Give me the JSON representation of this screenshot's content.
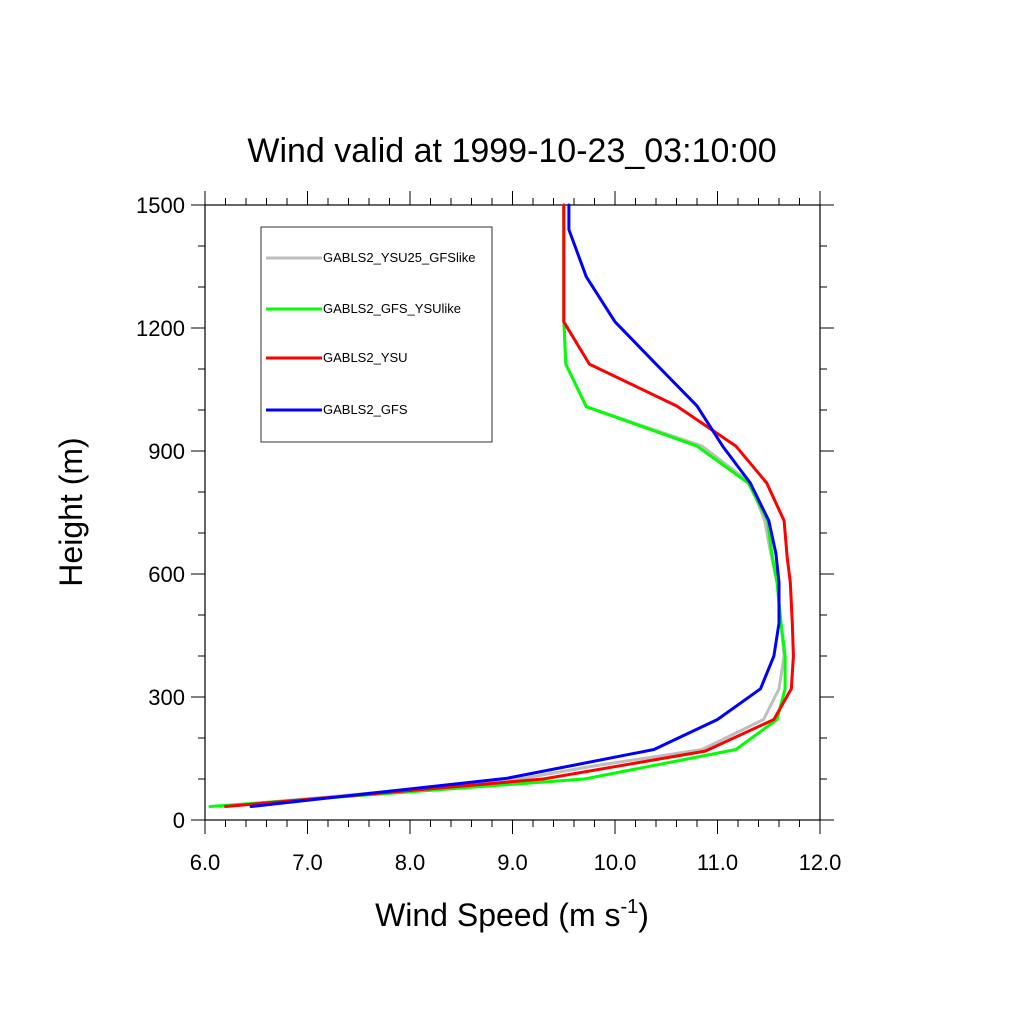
{
  "chart_data": {
    "type": "line",
    "title": "Wind valid at 1999-10-23_03:10:00",
    "xlabel": "Wind Speed (m s",
    "xlabel_sup": "-1",
    "xlabel_close": ")",
    "ylabel": "Height (m)",
    "xlim": [
      6.0,
      12.0
    ],
    "ylim": [
      0,
      1500
    ],
    "x_ticks": [
      "6.0",
      "7.0",
      "8.0",
      "9.0",
      "10.0",
      "11.0",
      "12.0"
    ],
    "y_ticks": [
      "0",
      "300",
      "600",
      "900",
      "1200",
      "1500"
    ],
    "legend_position": "top-left",
    "series": [
      {
        "name": "GABLS2_YSU25_GFSlike",
        "color": "#bebebe",
        "points": [
          [
            6.15,
            33
          ],
          [
            9.0,
            97
          ],
          [
            9.8,
            132
          ],
          [
            10.85,
            172
          ],
          [
            11.45,
            245
          ],
          [
            11.6,
            320
          ],
          [
            11.65,
            400
          ],
          [
            11.62,
            480
          ],
          [
            11.58,
            580
          ],
          [
            11.52,
            650
          ],
          [
            11.46,
            730
          ],
          [
            11.32,
            822
          ],
          [
            10.85,
            912
          ],
          [
            9.72,
            1008
          ],
          [
            9.52,
            1112
          ],
          [
            9.5,
            1220
          ],
          [
            9.5,
            1500
          ]
        ]
      },
      {
        "name": "GABLS2_GFS_YSUlike",
        "color": "#00ff00",
        "points": [
          [
            6.05,
            33
          ],
          [
            9.7,
            100
          ],
          [
            11.18,
            172
          ],
          [
            11.58,
            245
          ],
          [
            11.66,
            320
          ],
          [
            11.66,
            400
          ],
          [
            11.62,
            480
          ],
          [
            11.58,
            580
          ],
          [
            11.53,
            650
          ],
          [
            11.49,
            730
          ],
          [
            11.3,
            822
          ],
          [
            10.8,
            912
          ],
          [
            9.72,
            1008
          ],
          [
            9.52,
            1112
          ],
          [
            9.5,
            1220
          ],
          [
            9.5,
            1500
          ]
        ]
      },
      {
        "name": "GABLS2_YSU",
        "color": "#ff0000",
        "points": [
          [
            6.2,
            33
          ],
          [
            9.3,
            100
          ],
          [
            10.88,
            168
          ],
          [
            11.55,
            245
          ],
          [
            11.72,
            320
          ],
          [
            11.74,
            400
          ],
          [
            11.73,
            480
          ],
          [
            11.71,
            580
          ],
          [
            11.68,
            640
          ],
          [
            11.65,
            730
          ],
          [
            11.48,
            822
          ],
          [
            11.18,
            912
          ],
          [
            10.6,
            1010
          ],
          [
            9.75,
            1112
          ],
          [
            9.5,
            1215
          ],
          [
            9.5,
            1500
          ]
        ]
      },
      {
        "name": "GABLS2_GFS",
        "color": "#0000ff",
        "points": [
          [
            6.45,
            33
          ],
          [
            8.95,
            102
          ],
          [
            10.38,
            172
          ],
          [
            11.0,
            245
          ],
          [
            11.42,
            320
          ],
          [
            11.55,
            400
          ],
          [
            11.6,
            480
          ],
          [
            11.6,
            580
          ],
          [
            11.57,
            650
          ],
          [
            11.5,
            730
          ],
          [
            11.32,
            822
          ],
          [
            11.05,
            912
          ],
          [
            10.8,
            1010
          ],
          [
            10.4,
            1112
          ],
          [
            10.0,
            1215
          ],
          [
            9.72,
            1325
          ],
          [
            9.55,
            1440
          ],
          [
            9.55,
            1500
          ]
        ]
      }
    ]
  }
}
